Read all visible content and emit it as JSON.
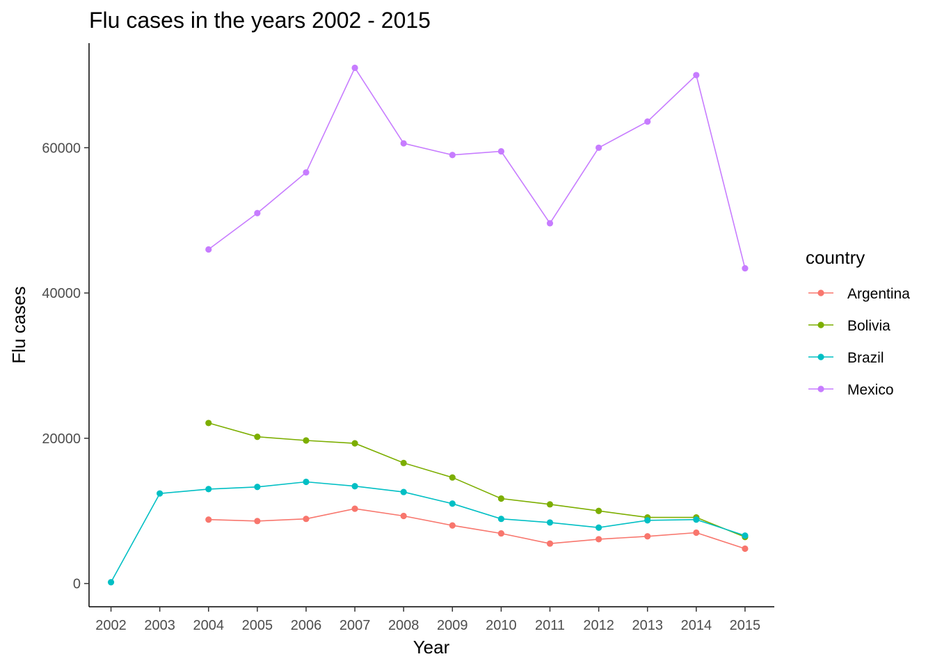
{
  "chart_data": {
    "type": "line",
    "title": "Flu cases in the years 2002 - 2015",
    "xlabel": "Year",
    "ylabel": "Flu cases",
    "x": [
      2002,
      2003,
      2004,
      2005,
      2006,
      2007,
      2008,
      2009,
      2010,
      2011,
      2012,
      2013,
      2014,
      2015
    ],
    "xlim": [
      2001.55,
      2015.6
    ],
    "ylim": [
      -3200,
      74400
    ],
    "yticks": [
      0,
      20000,
      40000,
      60000
    ],
    "grid": false,
    "legend": {
      "title": "country",
      "placement": "right"
    },
    "series": [
      {
        "name": "Argentina",
        "color": "#F8766D",
        "x": [
          2004,
          2005,
          2006,
          2007,
          2008,
          2009,
          2010,
          2011,
          2012,
          2013,
          2014,
          2015
        ],
        "values": [
          8800,
          8600,
          8900,
          10300,
          9300,
          8000,
          6900,
          5500,
          6100,
          6500,
          7000,
          4800
        ]
      },
      {
        "name": "Bolivia",
        "color": "#7CAE00",
        "x": [
          2004,
          2005,
          2006,
          2007,
          2008,
          2009,
          2010,
          2011,
          2012,
          2013,
          2014,
          2015
        ],
        "values": [
          22100,
          20200,
          19700,
          19300,
          16600,
          14600,
          11700,
          10900,
          10000,
          9100,
          9100,
          6400
        ]
      },
      {
        "name": "Brazil",
        "color": "#00BFC4",
        "x": [
          2002,
          2003,
          2004,
          2005,
          2006,
          2007,
          2008,
          2009,
          2010,
          2011,
          2012,
          2013,
          2014,
          2015
        ],
        "values": [
          174,
          12400,
          13000,
          13300,
          14000,
          13400,
          12600,
          11000,
          8900,
          8400,
          7700,
          8700,
          8800,
          6600
        ]
      },
      {
        "name": "Mexico",
        "color": "#C77CFF",
        "x": [
          2004,
          2005,
          2006,
          2007,
          2008,
          2009,
          2010,
          2011,
          2012,
          2013,
          2014,
          2015
        ],
        "values": [
          46000,
          51000,
          56600,
          71000,
          60600,
          59000,
          59500,
          49600,
          60000,
          63600,
          70000,
          43400
        ]
      }
    ]
  }
}
